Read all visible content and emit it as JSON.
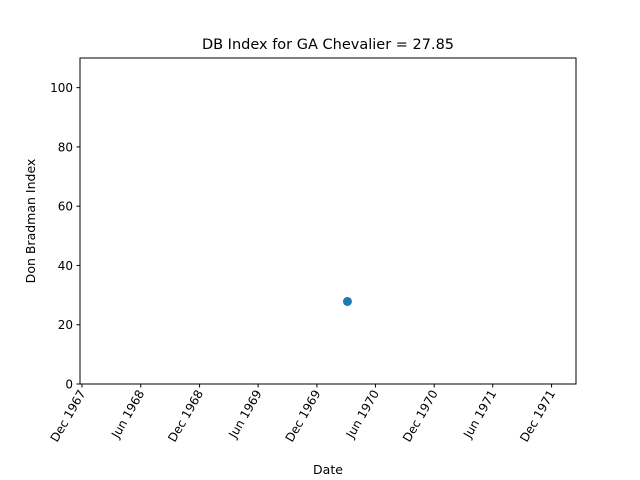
{
  "chart_data": {
    "type": "scatter",
    "title": "DB Index for GA Chevalier = 27.85",
    "xlabel": "Date",
    "ylabel": "Don Bradman Index",
    "x_axis_type": "date",
    "xlim": [
      "1967-11-25",
      "1972-02-15"
    ],
    "ylim": [
      0,
      110
    ],
    "x_ticks": [
      {
        "date": "1967-12-01",
        "label": "Dec 1967"
      },
      {
        "date": "1968-06-01",
        "label": "Jun 1968"
      },
      {
        "date": "1968-12-01",
        "label": "Dec 1968"
      },
      {
        "date": "1969-06-01",
        "label": "Jun 1969"
      },
      {
        "date": "1969-12-01",
        "label": "Dec 1969"
      },
      {
        "date": "1970-06-01",
        "label": "Jun 1970"
      },
      {
        "date": "1970-12-01",
        "label": "Dec 1970"
      },
      {
        "date": "1971-06-01",
        "label": "Jun 1971"
      },
      {
        "date": "1971-12-01",
        "label": "Dec 1971"
      }
    ],
    "y_ticks": [
      0,
      20,
      40,
      60,
      80,
      100
    ],
    "grid": false,
    "marker_color": "#1f77b4",
    "points": [
      {
        "x": "1970-03-06",
        "y": 27.85
      }
    ]
  }
}
